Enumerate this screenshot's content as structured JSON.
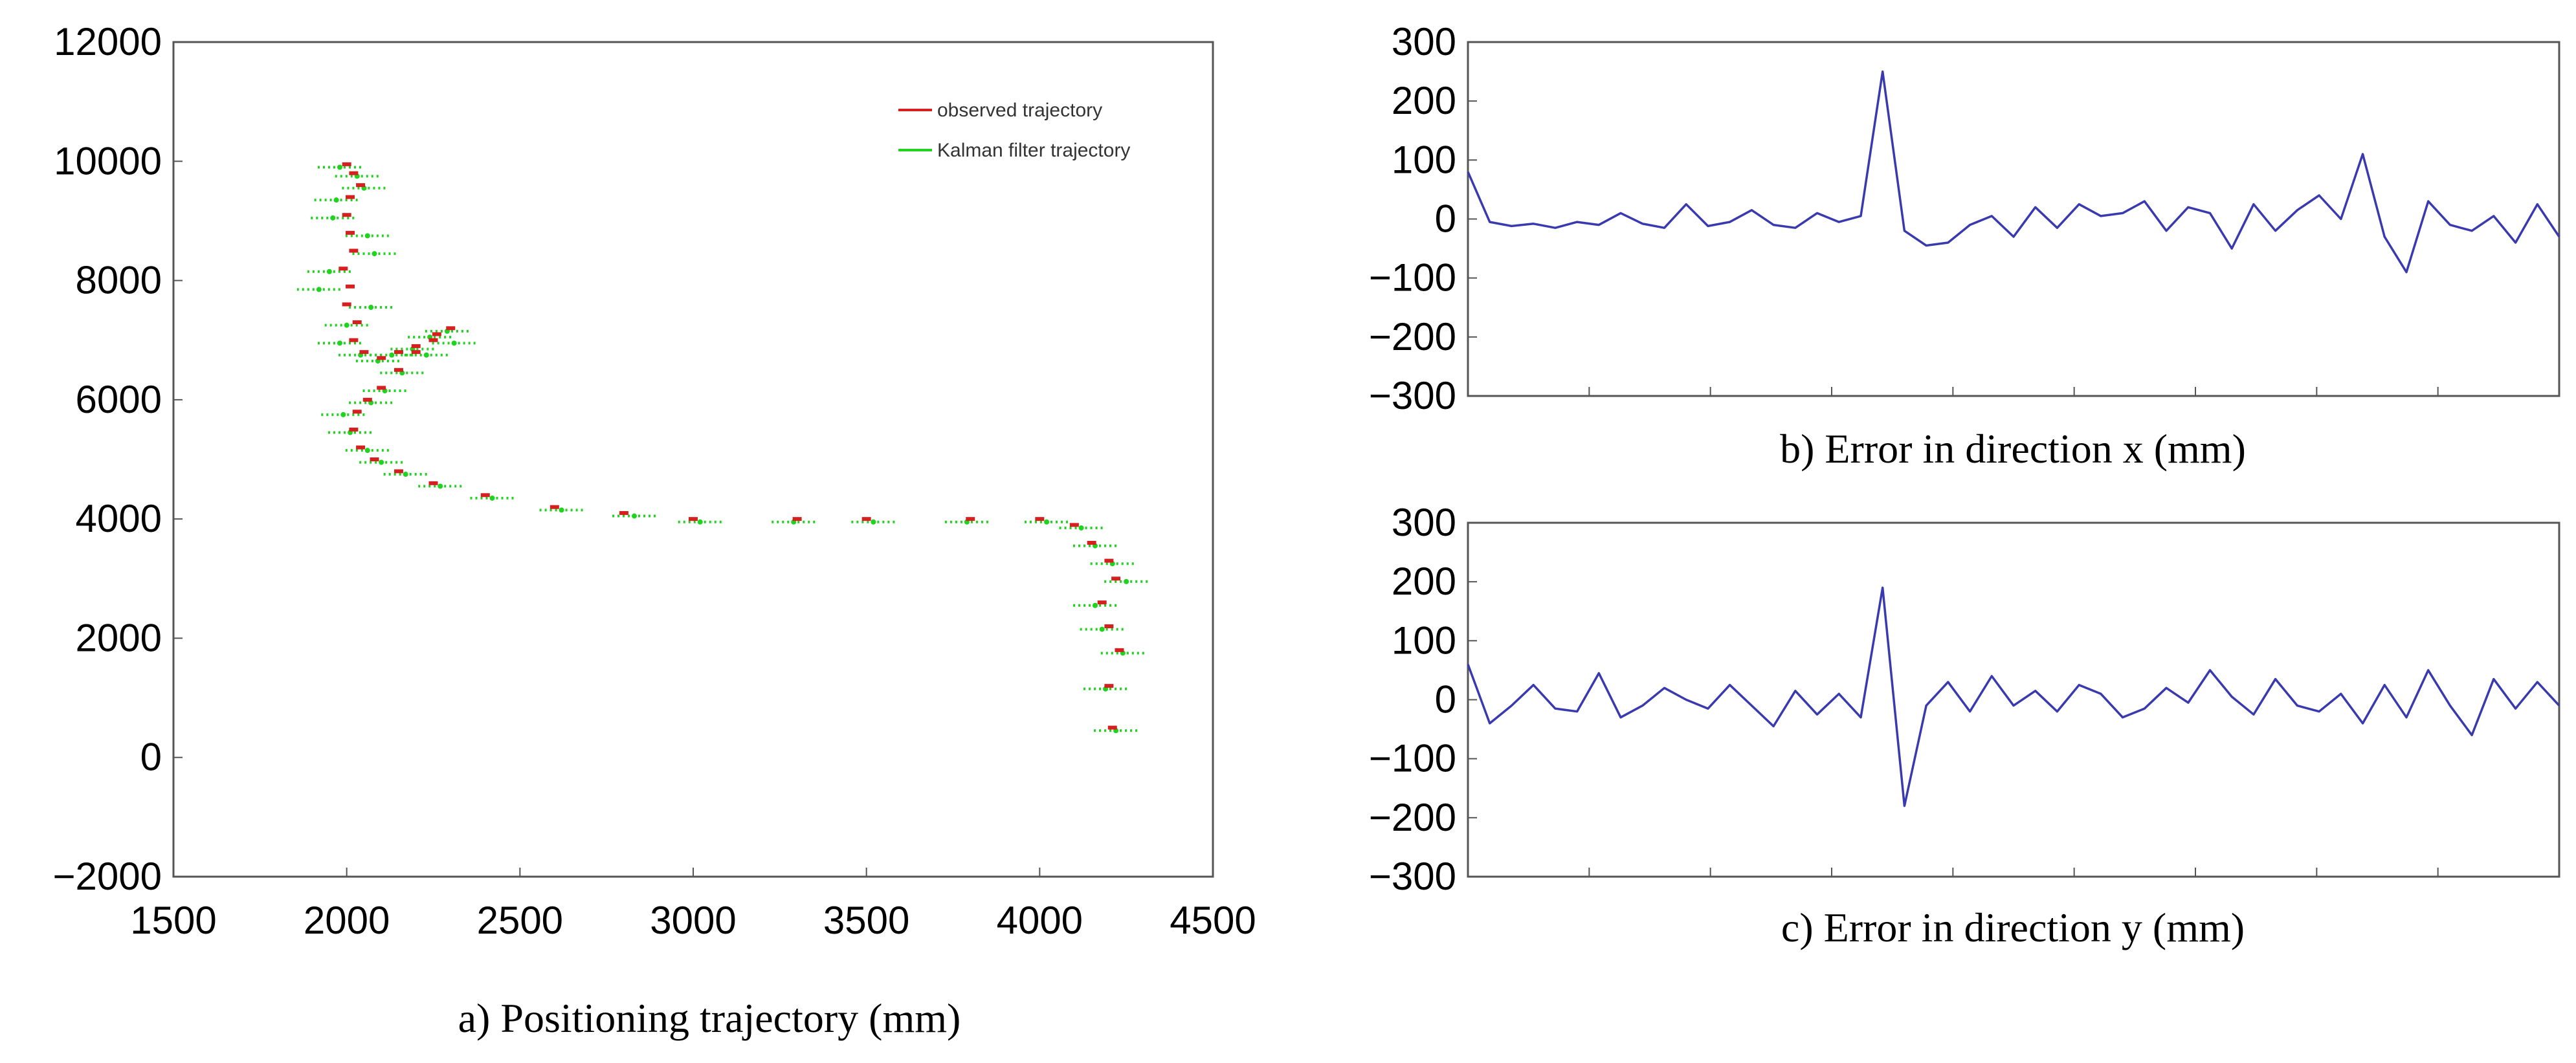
{
  "chart_data": [
    {
      "type": "scatter",
      "title": "",
      "caption": "a) Positioning trajectory (mm)",
      "xlabel": "",
      "ylabel": "",
      "xlim": [
        1500,
        4500
      ],
      "ylim": [
        -2000,
        12000
      ],
      "xticks": [
        1500,
        2000,
        2500,
        3000,
        3500,
        4000,
        4500
      ],
      "yticks": [
        -2000,
        0,
        2000,
        4000,
        6000,
        8000,
        10000,
        12000
      ],
      "xtick_labels": [
        "1500",
        "2000",
        "2500",
        "3000",
        "3500",
        "4000",
        "4500"
      ],
      "ytick_labels": [
        "−2000",
        "0",
        "2000",
        "4000",
        "6000",
        "8000",
        "10000",
        "12000"
      ],
      "legend": [
        "observed trajectory",
        "Kalman filter trajectory"
      ],
      "legend_position": "top-right",
      "colors": {
        "observed": "#d62020",
        "kalman": "#1fd31f"
      },
      "series": [
        {
          "name": "observed trajectory",
          "x": [
            2000,
            2020,
            2040,
            2010,
            2000,
            2010,
            2020,
            1990,
            2010,
            2000,
            2030,
            2020,
            2050,
            2100,
            2150,
            2200,
            2260,
            2300,
            2250,
            2200,
            2150,
            2100,
            2060,
            2030,
            2020,
            2040,
            2080,
            2150,
            2250,
            2400,
            2600,
            2800,
            3000,
            3300,
            3500,
            3800,
            4000,
            4100,
            4150,
            4200,
            4220,
            4180,
            4200,
            4230,
            4200,
            4210
          ],
          "y": [
            9950,
            9800,
            9600,
            9400,
            9100,
            8800,
            8500,
            8200,
            7900,
            7600,
            7300,
            7000,
            6800,
            6700,
            6800,
            6900,
            7100,
            7200,
            7000,
            6800,
            6500,
            6200,
            6000,
            5800,
            5500,
            5200,
            5000,
            4800,
            4600,
            4400,
            4200,
            4100,
            4000,
            4000,
            4000,
            4000,
            4000,
            3900,
            3600,
            3300,
            3000,
            2600,
            2200,
            1800,
            1200,
            500
          ]
        },
        {
          "name": "Kalman filter trajectory",
          "x": [
            1980,
            2030,
            2050,
            1970,
            1960,
            2060,
            2080,
            1950,
            1920,
            2070,
            2000,
            1980,
            2040,
            2090,
            2130,
            2190,
            2240,
            2290,
            2310,
            2230,
            2160,
            2110,
            2070,
            1990,
            2010,
            2060,
            2100,
            2170,
            2270,
            2420,
            2620,
            2830,
            3020,
            3290,
            3520,
            3790,
            4020,
            4120,
            4160,
            4210,
            4250,
            4160,
            4180,
            4240,
            4190,
            4220
          ],
          "y": [
            9900,
            9750,
            9550,
            9350,
            9050,
            8750,
            8450,
            8150,
            7850,
            7550,
            7250,
            6950,
            6750,
            6650,
            6750,
            6850,
            7050,
            7150,
            6950,
            6750,
            6450,
            6150,
            5950,
            5750,
            5450,
            5150,
            4950,
            4750,
            4550,
            4350,
            4150,
            4050,
            3950,
            3950,
            3950,
            3950,
            3950,
            3850,
            3550,
            3250,
            2950,
            2550,
            2150,
            1750,
            1150,
            450
          ]
        }
      ]
    },
    {
      "type": "line",
      "title": "",
      "caption": "b) Error in direction x (mm)",
      "xlabel": "",
      "ylabel": "",
      "ylim": [
        -300,
        300
      ],
      "yticks": [
        -300,
        -200,
        -100,
        0,
        100,
        200,
        300
      ],
      "ytick_labels": [
        "−300",
        "−200",
        "−100",
        "0",
        "100",
        "200",
        "300"
      ],
      "x_tick_count": 9,
      "color": "#3a3ab0",
      "series": [
        {
          "name": "Error x",
          "x": [
            0,
            4,
            8,
            12,
            16,
            20,
            24,
            28,
            32,
            36,
            40,
            44,
            48,
            52,
            56,
            60,
            64,
            68,
            72,
            76,
            80,
            84,
            88,
            92,
            96,
            100,
            104,
            108,
            112,
            116,
            120,
            124,
            128,
            132,
            136,
            140,
            144,
            148,
            152,
            156,
            160,
            164,
            168,
            172,
            176,
            180,
            184,
            188,
            192,
            196,
            200
          ],
          "values": [
            80,
            -5,
            -12,
            -8,
            -15,
            -5,
            -10,
            10,
            -8,
            -15,
            25,
            -12,
            -5,
            15,
            -10,
            -15,
            10,
            -5,
            5,
            250,
            -20,
            -45,
            -40,
            -10,
            5,
            -30,
            20,
            -15,
            25,
            5,
            10,
            30,
            -20,
            20,
            10,
            -50,
            25,
            -20,
            15,
            40,
            0,
            110,
            -30,
            -90,
            30,
            -10,
            -20,
            5,
            -40,
            25,
            -30
          ]
        }
      ]
    },
    {
      "type": "line",
      "title": "",
      "caption": "c) Error in direction y (mm)",
      "xlabel": "",
      "ylabel": "",
      "ylim": [
        -300,
        300
      ],
      "yticks": [
        -300,
        -200,
        -100,
        0,
        100,
        200,
        300
      ],
      "ytick_labels": [
        "−300",
        "−200",
        "−100",
        "0",
        "100",
        "200",
        "300"
      ],
      "x_tick_count": 9,
      "color": "#3a3ab0",
      "series": [
        {
          "name": "Error y",
          "x": [
            0,
            4,
            8,
            12,
            16,
            20,
            24,
            28,
            32,
            36,
            40,
            44,
            48,
            52,
            56,
            60,
            64,
            68,
            72,
            76,
            80,
            84,
            88,
            92,
            96,
            100,
            104,
            108,
            112,
            116,
            120,
            124,
            128,
            132,
            136,
            140,
            144,
            148,
            152,
            156,
            160,
            164,
            168,
            172,
            176,
            180,
            184,
            188,
            192,
            196,
            200
          ],
          "values": [
            60,
            -40,
            -10,
            25,
            -15,
            -20,
            45,
            -30,
            -10,
            20,
            0,
            -15,
            25,
            -10,
            -45,
            15,
            -25,
            10,
            -30,
            190,
            -180,
            -10,
            30,
            -20,
            40,
            -10,
            15,
            -20,
            25,
            10,
            -30,
            -15,
            20,
            -5,
            50,
            5,
            -25,
            35,
            -10,
            -20,
            10,
            -40,
            25,
            -30,
            50,
            -10,
            -60,
            35,
            -15,
            30,
            -10
          ]
        }
      ]
    }
  ]
}
